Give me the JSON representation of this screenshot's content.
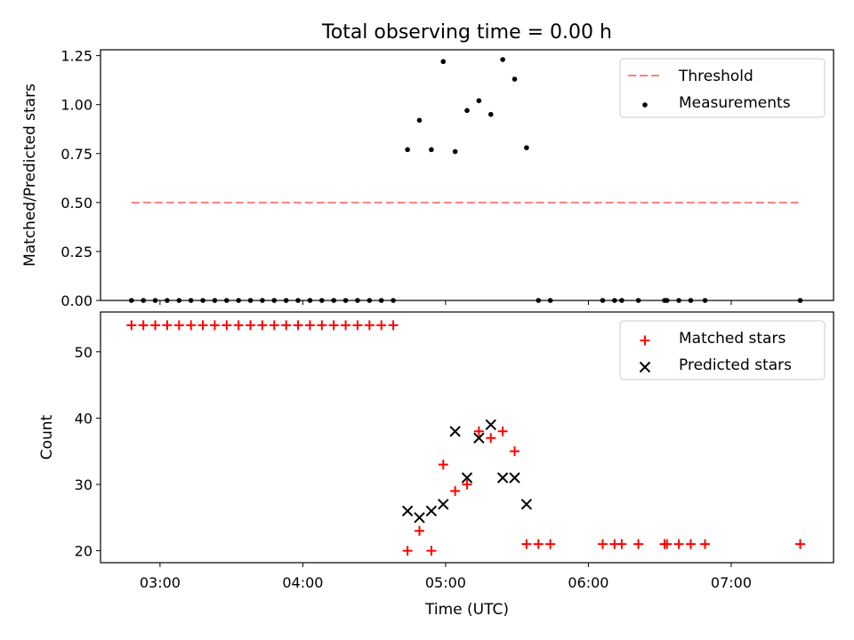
{
  "chart_data": [
    {
      "type": "scatter",
      "title": "Total observing time = 0.00 h",
      "xlabel": "",
      "ylabel": "Matched/Predicted stars",
      "ylim": [
        0,
        1.28
      ],
      "yticks": [
        "0.00",
        "0.25",
        "0.50",
        "0.75",
        "1.00",
        "1.25"
      ],
      "ytick_values": [
        0,
        0.25,
        0.5,
        0.75,
        1.0,
        1.25
      ],
      "legend": {
        "position": "top-right",
        "entries": [
          "Threshold",
          "Measurements"
        ]
      },
      "threshold": {
        "name": "Threshold",
        "value": 0.5,
        "x_range": [
          "02:48",
          "07:29"
        ],
        "color": "#ff7f7f",
        "style": "dashed"
      },
      "series": [
        {
          "name": "Measurements",
          "color": "#000000",
          "marker": "dot",
          "points": [
            [
              "02:48",
              0
            ],
            [
              "02:58",
              0
            ],
            [
              "03:08",
              0
            ],
            [
              "03:18",
              0
            ],
            [
              "03:28",
              0
            ],
            [
              "03:38",
              0
            ],
            [
              "03:48",
              0
            ],
            [
              "03:58",
              0
            ],
            [
              "04:08",
              0
            ],
            [
              "04:18",
              0
            ],
            [
              "04:28",
              0
            ],
            [
              "04:38",
              0
            ],
            [
              "02:53",
              0
            ],
            [
              "03:03",
              0
            ],
            [
              "03:13",
              0
            ],
            [
              "03:23",
              0
            ],
            [
              "03:33",
              0
            ],
            [
              "03:43",
              0
            ],
            [
              "03:53",
              0
            ],
            [
              "04:03",
              0
            ],
            [
              "04:13",
              0
            ],
            [
              "04:23",
              0
            ],
            [
              "04:33",
              0
            ],
            [
              "04:44",
              0.77
            ],
            [
              "04:49",
              0.92
            ],
            [
              "04:54",
              0.77
            ],
            [
              "04:59",
              1.22
            ],
            [
              "05:04",
              0.76
            ],
            [
              "05:09",
              0.97
            ],
            [
              "05:14",
              1.02
            ],
            [
              "05:19",
              0.95
            ],
            [
              "05:24",
              1.23
            ],
            [
              "05:29",
              1.13
            ],
            [
              "05:34",
              0.78
            ],
            [
              "05:39",
              0
            ],
            [
              "05:44",
              0
            ],
            [
              "06:06",
              0
            ],
            [
              "06:11",
              0
            ],
            [
              "06:14",
              0
            ],
            [
              "06:21",
              0
            ],
            [
              "06:32",
              0
            ],
            [
              "06:33",
              0
            ],
            [
              "06:38",
              0
            ],
            [
              "06:43",
              0
            ],
            [
              "06:49",
              0
            ],
            [
              "07:29",
              0
            ]
          ]
        }
      ]
    },
    {
      "type": "scatter",
      "title": "",
      "xlabel": "Time (UTC)",
      "ylabel": "Count",
      "ylim": [
        18.2,
        56
      ],
      "yticks": [
        "20",
        "30",
        "40",
        "50"
      ],
      "ytick_values": [
        20,
        30,
        40,
        50
      ],
      "xticks": [
        "03:00",
        "04:00",
        "05:00",
        "06:00",
        "07:00"
      ],
      "xtick_values": [
        "03:00",
        "04:00",
        "05:00",
        "06:00",
        "07:00"
      ],
      "xlim": [
        "02:35",
        "07:43"
      ],
      "legend": {
        "position": "top-right",
        "entries": [
          "Matched stars",
          "Predicted stars"
        ]
      },
      "series": [
        {
          "name": "Matched stars",
          "color": "#ff0000",
          "marker": "plus",
          "points": [
            [
              "02:48",
              54
            ],
            [
              "02:53",
              54
            ],
            [
              "02:58",
              54
            ],
            [
              "03:03",
              54
            ],
            [
              "03:08",
              54
            ],
            [
              "03:13",
              54
            ],
            [
              "03:18",
              54
            ],
            [
              "03:23",
              54
            ],
            [
              "03:28",
              54
            ],
            [
              "03:33",
              54
            ],
            [
              "03:38",
              54
            ],
            [
              "03:43",
              54
            ],
            [
              "03:48",
              54
            ],
            [
              "03:53",
              54
            ],
            [
              "03:58",
              54
            ],
            [
              "04:03",
              54
            ],
            [
              "04:08",
              54
            ],
            [
              "04:13",
              54
            ],
            [
              "04:18",
              54
            ],
            [
              "04:23",
              54
            ],
            [
              "04:28",
              54
            ],
            [
              "04:33",
              54
            ],
            [
              "04:38",
              54
            ],
            [
              "04:44",
              20
            ],
            [
              "04:49",
              23
            ],
            [
              "04:54",
              20
            ],
            [
              "04:59",
              33
            ],
            [
              "05:04",
              29
            ],
            [
              "05:09",
              30
            ],
            [
              "05:14",
              38
            ],
            [
              "05:19",
              37
            ],
            [
              "05:24",
              38
            ],
            [
              "05:29",
              35
            ],
            [
              "05:34",
              21
            ],
            [
              "05:39",
              21
            ],
            [
              "05:44",
              21
            ],
            [
              "06:06",
              21
            ],
            [
              "06:11",
              21
            ],
            [
              "06:14",
              21
            ],
            [
              "06:21",
              21
            ],
            [
              "06:32",
              21
            ],
            [
              "06:33",
              21
            ],
            [
              "06:38",
              21
            ],
            [
              "06:43",
              21
            ],
            [
              "06:49",
              21
            ],
            [
              "07:29",
              21
            ]
          ]
        },
        {
          "name": "Predicted stars",
          "color": "#000000",
          "marker": "cross",
          "points": [
            [
              "04:44",
              26
            ],
            [
              "04:49",
              25
            ],
            [
              "04:54",
              26
            ],
            [
              "04:59",
              27
            ],
            [
              "05:04",
              38
            ],
            [
              "05:09",
              31
            ],
            [
              "05:14",
              37
            ],
            [
              "05:19",
              39
            ],
            [
              "05:24",
              31
            ],
            [
              "05:29",
              31
            ],
            [
              "05:34",
              27
            ]
          ]
        }
      ]
    }
  ]
}
